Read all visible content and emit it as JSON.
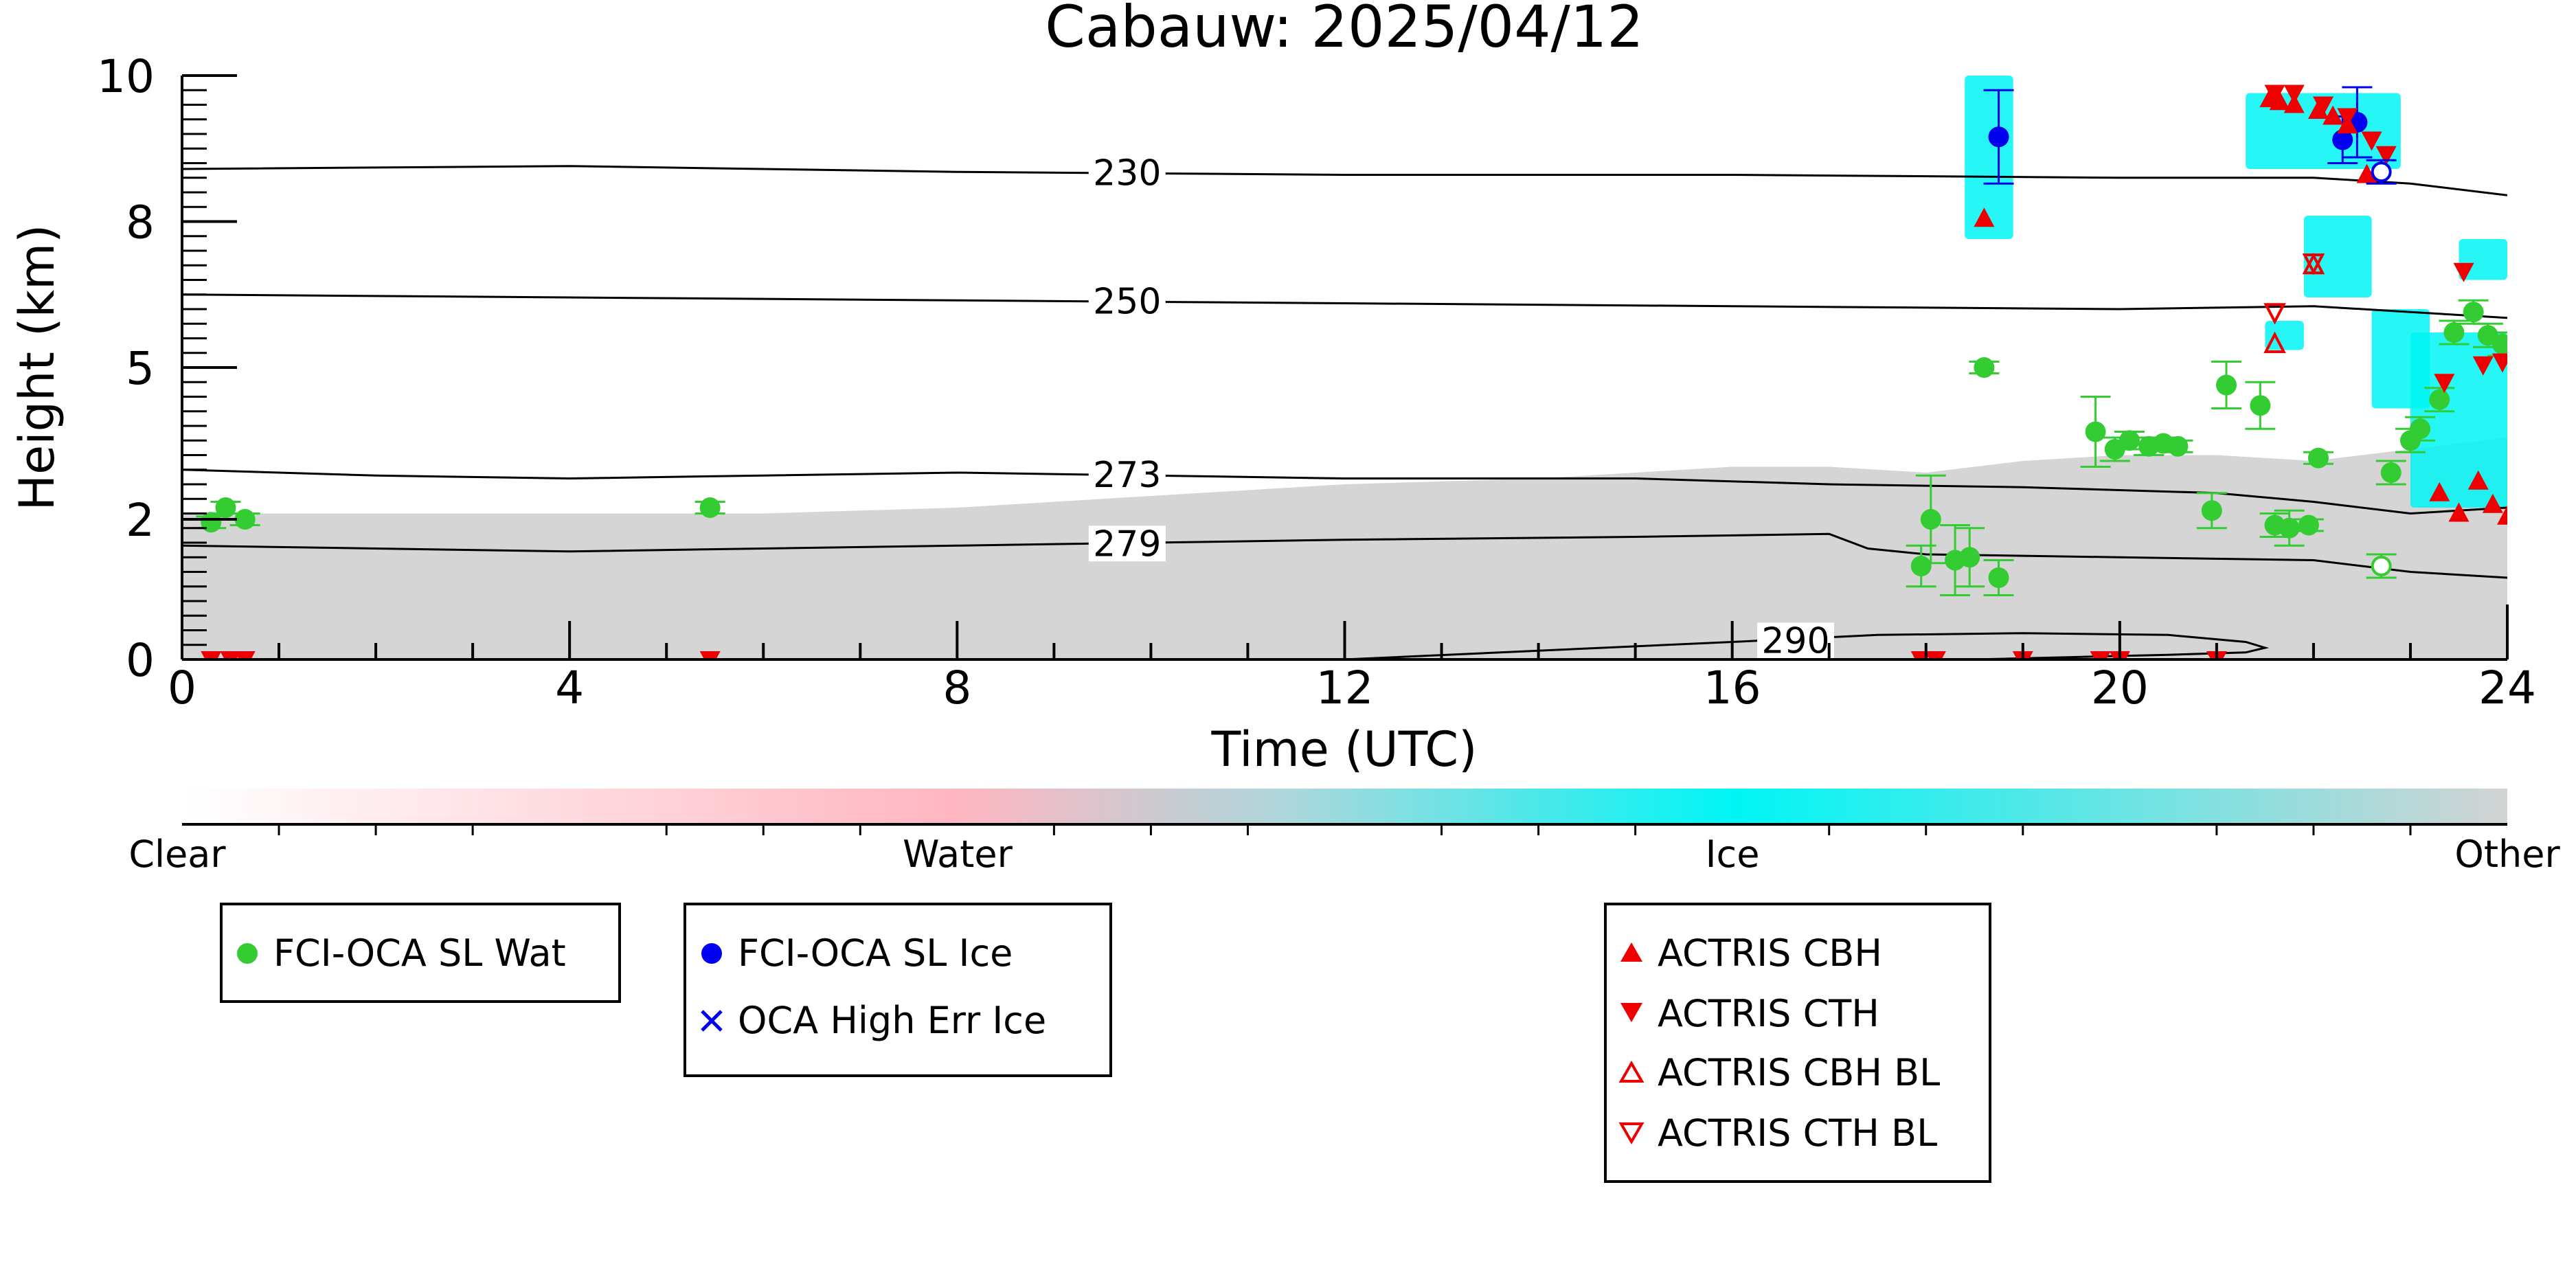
{
  "chart_data": {
    "type": "scatter",
    "title": "Cabauw: 2025/04/12",
    "xlabel": "Time (UTC)",
    "ylabel": "Height (km)",
    "xlim": [
      0,
      24
    ],
    "ylim": [
      0,
      10
    ],
    "x_ticks": [
      0,
      4,
      8,
      12,
      16,
      20,
      24
    ],
    "y_ticks": [
      {
        "label": "0",
        "value": 0
      },
      {
        "label": "2",
        "value": 2.4
      },
      {
        "label": "5",
        "value": 5
      },
      {
        "label": "8",
        "value": 7.5
      },
      {
        "label": "10",
        "value": 10
      }
    ],
    "background_classification": {
      "colorbar_labels": [
        "Clear",
        "Water",
        "Ice",
        "Other"
      ],
      "colors": {
        "Clear": "#ffffff",
        "Water": "#ffb6c1",
        "Ice": "#00f5f5",
        "Other": "#d3d3d3"
      },
      "other_layer_top_km": [
        [
          0,
          2.5
        ],
        [
          2,
          2.5
        ],
        [
          4,
          2.5
        ],
        [
          6,
          2.5
        ],
        [
          8,
          2.6
        ],
        [
          10,
          2.8
        ],
        [
          12,
          3.0
        ],
        [
          14,
          3.1
        ],
        [
          16,
          3.3
        ],
        [
          17,
          3.3
        ],
        [
          18,
          3.2
        ],
        [
          19,
          3.4
        ],
        [
          20,
          3.5
        ],
        [
          21,
          3.5
        ],
        [
          22,
          3.4
        ],
        [
          23,
          3.6
        ],
        [
          24,
          3.8
        ]
      ],
      "ice_patches": [
        {
          "x0": 18.4,
          "x1": 18.9,
          "y0": 7.2,
          "y1": 10.0
        },
        {
          "x0": 21.3,
          "x1": 22.9,
          "y0": 8.4,
          "y1": 9.7
        },
        {
          "x0": 21.5,
          "x1": 21.9,
          "y0": 5.3,
          "y1": 5.8
        },
        {
          "x0": 21.9,
          "x1": 22.6,
          "y0": 6.2,
          "y1": 7.6
        },
        {
          "x0": 22.6,
          "x1": 23.2,
          "y0": 4.3,
          "y1": 6.0
        },
        {
          "x0": 23.0,
          "x1": 24.0,
          "y0": 2.6,
          "y1": 5.6
        },
        {
          "x0": 23.5,
          "x1": 24.0,
          "y0": 6.5,
          "y1": 7.2
        }
      ]
    },
    "contours": [
      {
        "label": "230",
        "label_x": 9.4,
        "points": [
          [
            0,
            8.4
          ],
          [
            4,
            8.45
          ],
          [
            8,
            8.35
          ],
          [
            12,
            8.3
          ],
          [
            16,
            8.3
          ],
          [
            20,
            8.25
          ],
          [
            22,
            8.25
          ],
          [
            23,
            8.15
          ],
          [
            24,
            7.95
          ]
        ]
      },
      {
        "label": "250",
        "label_x": 9.4,
        "points": [
          [
            0,
            6.25
          ],
          [
            4,
            6.2
          ],
          [
            8,
            6.15
          ],
          [
            12,
            6.1
          ],
          [
            16,
            6.05
          ],
          [
            20,
            6.0
          ],
          [
            22,
            6.05
          ],
          [
            23,
            5.95
          ],
          [
            24,
            5.85
          ]
        ]
      },
      {
        "label": "273",
        "label_x": 9.4,
        "points": [
          [
            0,
            3.25
          ],
          [
            2,
            3.15
          ],
          [
            4,
            3.1
          ],
          [
            6,
            3.15
          ],
          [
            8,
            3.2
          ],
          [
            10,
            3.15
          ],
          [
            12,
            3.1
          ],
          [
            15,
            3.1
          ],
          [
            17,
            3.0
          ],
          [
            19,
            2.95
          ],
          [
            21,
            2.85
          ],
          [
            22,
            2.7
          ],
          [
            23,
            2.5
          ],
          [
            24,
            2.6
          ]
        ]
      },
      {
        "label": "279",
        "label_x": 9.4,
        "points": [
          [
            0,
            1.95
          ],
          [
            2,
            1.9
          ],
          [
            4,
            1.85
          ],
          [
            6,
            1.9
          ],
          [
            8,
            1.95
          ],
          [
            10,
            2.0
          ],
          [
            12,
            2.05
          ],
          [
            15,
            2.1
          ],
          [
            17,
            2.15
          ],
          [
            17.4,
            1.9
          ],
          [
            18,
            1.8
          ],
          [
            20,
            1.75
          ],
          [
            22,
            1.7
          ],
          [
            23,
            1.5
          ],
          [
            24,
            1.4
          ]
        ]
      },
      {
        "label": "290",
        "label_x": 16.3,
        "points": [
          [
            12,
            0.0
          ],
          [
            14,
            0.15
          ],
          [
            16,
            0.3
          ],
          [
            17.5,
            0.42
          ],
          [
            19,
            0.45
          ],
          [
            20.5,
            0.42
          ],
          [
            21.3,
            0.3
          ],
          [
            21.5,
            0.2
          ],
          [
            21.3,
            0.12
          ],
          [
            20.5,
            0.08
          ],
          [
            19.5,
            0.04
          ],
          [
            18.5,
            0.0
          ]
        ]
      }
    ],
    "series": [
      {
        "name": "FCI-OCA SL Wat",
        "color": "#33cc33",
        "marker": "circle-filled",
        "points": [
          {
            "x": 0.3,
            "y": 2.35,
            "err": 0.1
          },
          {
            "x": 0.45,
            "y": 2.6,
            "err": 0.1
          },
          {
            "x": 0.65,
            "y": 2.4,
            "err": 0.1
          },
          {
            "x": 5.45,
            "y": 2.6,
            "err": 0.1
          },
          {
            "x": 18.6,
            "y": 5.0,
            "err": 0.1
          },
          {
            "x": 17.95,
            "y": 1.6,
            "err": 0.35
          },
          {
            "x": 18.05,
            "y": 2.4,
            "err": 0.75
          },
          {
            "x": 18.3,
            "y": 1.7,
            "err": 0.6
          },
          {
            "x": 18.45,
            "y": 1.75,
            "err": 0.5
          },
          {
            "x": 18.75,
            "y": 1.4,
            "err": 0.3
          },
          {
            "x": 19.75,
            "y": 3.9,
            "err": 0.6
          },
          {
            "x": 19.95,
            "y": 3.6,
            "err": 0.2
          },
          {
            "x": 20.1,
            "y": 3.75,
            "err": 0.15
          },
          {
            "x": 20.3,
            "y": 3.65,
            "err": 0.15
          },
          {
            "x": 20.45,
            "y": 3.7,
            "err": 0.1
          },
          {
            "x": 20.6,
            "y": 3.65,
            "err": 0.1
          },
          {
            "x": 20.95,
            "y": 2.55,
            "err": 0.3
          },
          {
            "x": 21.1,
            "y": 4.7,
            "err": 0.4
          },
          {
            "x": 21.45,
            "y": 4.35,
            "err": 0.4
          },
          {
            "x": 21.6,
            "y": 2.3,
            "err": 0.2
          },
          {
            "x": 21.75,
            "y": 2.25,
            "err": 0.3
          },
          {
            "x": 21.95,
            "y": 2.3,
            "err": 0.1
          },
          {
            "x": 22.05,
            "y": 3.45,
            "err": 0.1
          },
          {
            "x": 22.8,
            "y": 3.2,
            "err": 0.2
          },
          {
            "x": 23.0,
            "y": 3.75,
            "err": 0.2
          },
          {
            "x": 23.1,
            "y": 3.95,
            "err": 0.2
          },
          {
            "x": 23.3,
            "y": 4.45,
            "err": 0.2
          },
          {
            "x": 23.45,
            "y": 5.6,
            "err": 0.2
          },
          {
            "x": 23.65,
            "y": 5.95,
            "err": 0.2
          },
          {
            "x": 23.8,
            "y": 5.55,
            "err": 0.2
          },
          {
            "x": 23.95,
            "y": 5.4,
            "err": 0.2
          }
        ]
      },
      {
        "name": "FCI-OCA SL Ice",
        "color": "#0000ee",
        "marker": "circle-filled",
        "points": [
          {
            "x": 18.75,
            "y": 8.95,
            "err": 0.8
          },
          {
            "x": 22.3,
            "y": 8.9,
            "err": 0.4
          },
          {
            "x": 22.45,
            "y": 9.2,
            "err": 0.6
          }
        ]
      },
      {
        "name": "OCA High Err Ice",
        "color": "#0000ee",
        "marker": "x",
        "points": []
      },
      {
        "name": "ACTRIS CBH",
        "color": "#ee0000",
        "marker": "triangle-up-filled",
        "points": [
          {
            "x": 18.6,
            "y": 7.55
          },
          {
            "x": 21.55,
            "y": 9.6
          },
          {
            "x": 21.65,
            "y": 9.55
          },
          {
            "x": 21.8,
            "y": 9.5
          },
          {
            "x": 22.05,
            "y": 9.4
          },
          {
            "x": 22.2,
            "y": 9.3
          },
          {
            "x": 22.35,
            "y": 9.15
          },
          {
            "x": 22.55,
            "y": 8.3
          },
          {
            "x": 23.3,
            "y": 2.85
          },
          {
            "x": 23.5,
            "y": 2.5
          },
          {
            "x": 23.7,
            "y": 3.05
          },
          {
            "x": 23.85,
            "y": 2.65
          },
          {
            "x": 24.0,
            "y": 2.45
          }
        ]
      },
      {
        "name": "ACTRIS CTH",
        "color": "#ee0000",
        "marker": "triangle-down-filled",
        "points": [
          {
            "x": 0.3,
            "y": 0.0
          },
          {
            "x": 0.5,
            "y": 0.0
          },
          {
            "x": 0.65,
            "y": 0.0
          },
          {
            "x": 5.45,
            "y": 0.0
          },
          {
            "x": 17.95,
            "y": 0.0
          },
          {
            "x": 18.1,
            "y": 0.0
          },
          {
            "x": 19.0,
            "y": 0.0
          },
          {
            "x": 19.8,
            "y": 0.0
          },
          {
            "x": 20.0,
            "y": 0.0
          },
          {
            "x": 21.0,
            "y": 0.0
          },
          {
            "x": 21.6,
            "y": 9.7
          },
          {
            "x": 21.8,
            "y": 9.7
          },
          {
            "x": 22.1,
            "y": 9.5
          },
          {
            "x": 22.35,
            "y": 9.3
          },
          {
            "x": 22.6,
            "y": 8.9
          },
          {
            "x": 22.75,
            "y": 8.65
          },
          {
            "x": 23.35,
            "y": 4.75
          },
          {
            "x": 23.55,
            "y": 6.65
          },
          {
            "x": 23.75,
            "y": 5.05
          },
          {
            "x": 23.95,
            "y": 5.1
          }
        ]
      },
      {
        "name": "ACTRIS CBH BL",
        "color": "#ee0000",
        "marker": "triangle-up-open",
        "points": [
          {
            "x": 21.6,
            "y": 5.4
          },
          {
            "x": 22.0,
            "y": 6.75
          }
        ]
      },
      {
        "name": "ACTRIS CTH BL",
        "color": "#ee0000",
        "marker": "triangle-down-open",
        "points": [
          {
            "x": 21.6,
            "y": 5.95
          },
          {
            "x": 22.0,
            "y": 6.8
          }
        ]
      }
    ],
    "open_markers_unlisted": [
      {
        "x": 22.7,
        "y": 8.35,
        "color": "#0000ee",
        "err": 0.2
      },
      {
        "x": 22.7,
        "y": 1.6,
        "color": "#33cc33",
        "err": 0.2
      }
    ],
    "legend": [
      {
        "group": 1,
        "entries": [
          "FCI-OCA SL Wat"
        ]
      },
      {
        "group": 2,
        "entries": [
          "FCI-OCA SL Ice",
          "OCA High Err Ice"
        ]
      },
      {
        "group": 3,
        "entries": [
          "ACTRIS CBH",
          "ACTRIS CTH",
          "ACTRIS CBH BL",
          "ACTRIS CTH BL"
        ]
      }
    ],
    "grid": false
  }
}
